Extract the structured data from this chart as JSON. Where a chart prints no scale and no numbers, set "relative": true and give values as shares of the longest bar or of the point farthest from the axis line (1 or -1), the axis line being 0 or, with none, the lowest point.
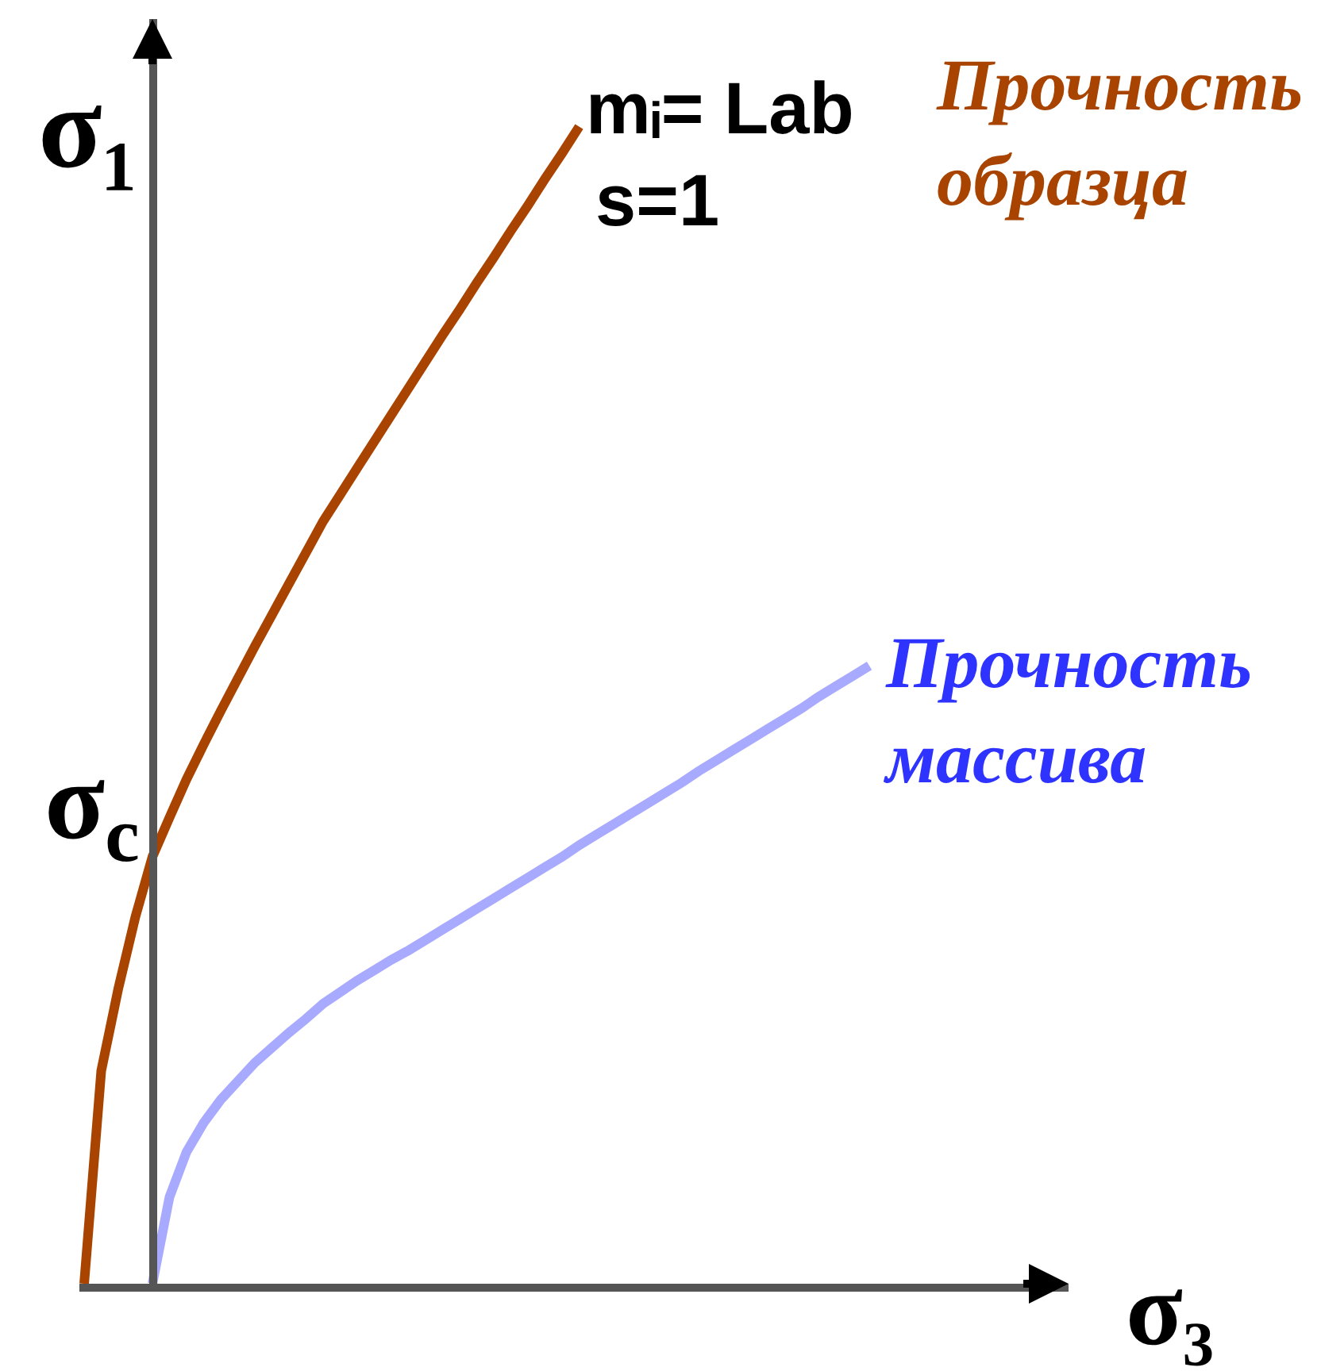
{
  "chart_data": {
    "type": "line",
    "relative": true,
    "xlabel": "σ₃",
    "ylabel": "σ₁",
    "categories": [
      null,
      null,
      null,
      null,
      null,
      null,
      null,
      null,
      null,
      null,
      null,
      null,
      null,
      null,
      null,
      null,
      null,
      null,
      null,
      null,
      null,
      null,
      null,
      null,
      null,
      null,
      null,
      null,
      null,
      null,
      null,
      null,
      null,
      null,
      null,
      null,
      null,
      null,
      null,
      null,
      null,
      null,
      null,
      null,
      null,
      null,
      null
    ],
    "series": [
      {
        "name": "Прочность образца",
        "color": "#a84400",
        "values": [
          0,
          0.184,
          0.255,
          0.317,
          0.369,
          0.403,
          0.436,
          0.466,
          0.495,
          0.523,
          0.551,
          0.578,
          0.605,
          0.632,
          0.659,
          0.682,
          0.705,
          0.728,
          0.751,
          0.774,
          0.797,
          0.82,
          0.842,
          0.865,
          0.887,
          0.91,
          0.932,
          0.955,
          0.977,
          1.0,
          null,
          null,
          null,
          null,
          null,
          null,
          null,
          null,
          null,
          null,
          null,
          null,
          null,
          null,
          null,
          null,
          null
        ]
      },
      {
        "name": "Прочность массива",
        "color": "#a8aaff",
        "values": [
          null,
          null,
          null,
          null,
          0,
          0.075,
          0.114,
          0.139,
          0.159,
          0.175,
          0.191,
          0.204,
          0.217,
          0.229,
          0.242,
          0.252,
          0.262,
          0.271,
          0.28,
          0.288,
          0.297,
          0.306,
          0.315,
          0.324,
          0.333,
          0.342,
          0.351,
          0.36,
          0.369,
          0.379,
          0.388,
          0.397,
          0.406,
          0.415,
          0.424,
          0.433,
          0.443,
          0.452,
          0.461,
          0.47,
          0.479,
          0.488,
          0.497,
          0.507,
          0.516,
          0.525,
          0.534
        ]
      }
    ],
    "annotations": [
      "σ$_{c}$",
      "mᵢ= Lab",
      "s=1"
    ]
  }
}
